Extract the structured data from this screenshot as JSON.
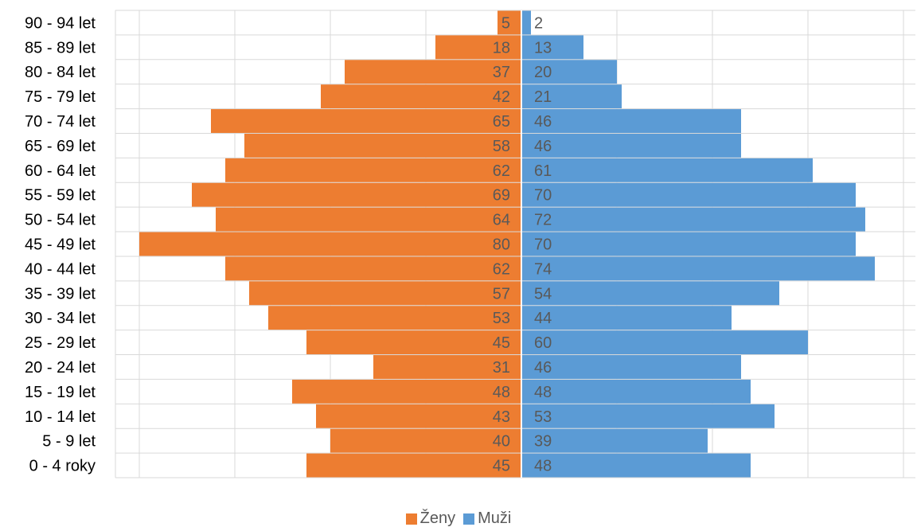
{
  "chart_data": {
    "type": "bar",
    "orientation": "horizontal",
    "layout": "population-pyramid",
    "categories": [
      "90 - 94 let",
      "85 - 89 let",
      "80 - 84 let",
      "75 - 79 let",
      "70 - 74 let",
      "65 - 69 let",
      "60 - 64 let",
      "55 - 59 let",
      "50 - 54 let",
      "45 - 49 let",
      "40 - 44 let",
      "35 - 39 let",
      "30 - 34 let",
      "25 - 29 let",
      "20 - 24 let",
      "15 - 19 let",
      "10 - 14 let",
      "5 - 9 let",
      "0 - 4 roky"
    ],
    "series": [
      {
        "name": "Ženy",
        "color": "#ED7D31",
        "side": "left",
        "values": [
          5,
          18,
          37,
          42,
          65,
          58,
          62,
          69,
          64,
          80,
          62,
          57,
          53,
          45,
          31,
          48,
          43,
          40,
          45
        ]
      },
      {
        "name": "Muži",
        "color": "#5B9BD5",
        "side": "right",
        "values": [
          2,
          13,
          20,
          21,
          46,
          46,
          61,
          70,
          72,
          70,
          74,
          54,
          44,
          60,
          46,
          48,
          53,
          39,
          48
        ]
      }
    ],
    "xlim": [
      -85,
      85
    ],
    "grid": true,
    "legend_position": "bottom",
    "title": "",
    "xlabel": "",
    "ylabel": "",
    "gridline_color": "#D9D9D9",
    "text_color": "#595959",
    "category_label_color": "#000000"
  }
}
